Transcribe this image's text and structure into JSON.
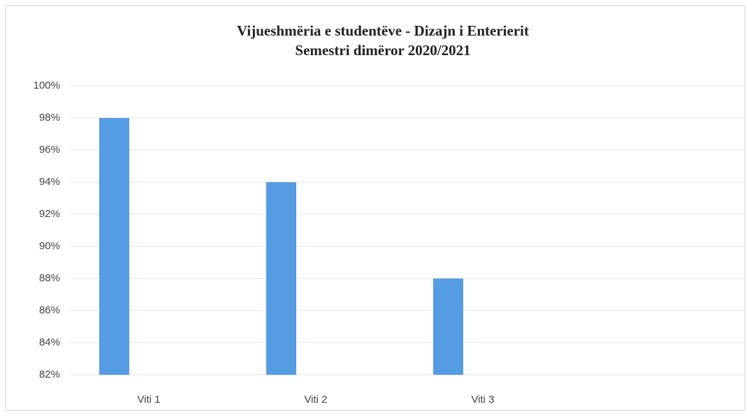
{
  "chart_data": {
    "type": "bar",
    "title": "Vijueshmëria e studentëve - Dizajn i Enterierit",
    "subtitle": "Semestri dimëror 2020/2021",
    "categories": [
      "Viti 1",
      "Viti 2",
      "Viti 3"
    ],
    "values": [
      98,
      94,
      88
    ],
    "color": "#559ce2",
    "ylim": [
      82,
      100
    ],
    "yticks": [
      {
        "value": 82,
        "label": "82%"
      },
      {
        "value": 84,
        "label": "84%"
      },
      {
        "value": 86,
        "label": "86%"
      },
      {
        "value": 88,
        "label": "88%"
      },
      {
        "value": 90,
        "label": "90%"
      },
      {
        "value": 92,
        "label": "92%"
      },
      {
        "value": 94,
        "label": "94%"
      },
      {
        "value": 96,
        "label": "96%"
      },
      {
        "value": 98,
        "label": "98%"
      },
      {
        "value": 100,
        "label": "100%"
      }
    ],
    "grid": true
  }
}
